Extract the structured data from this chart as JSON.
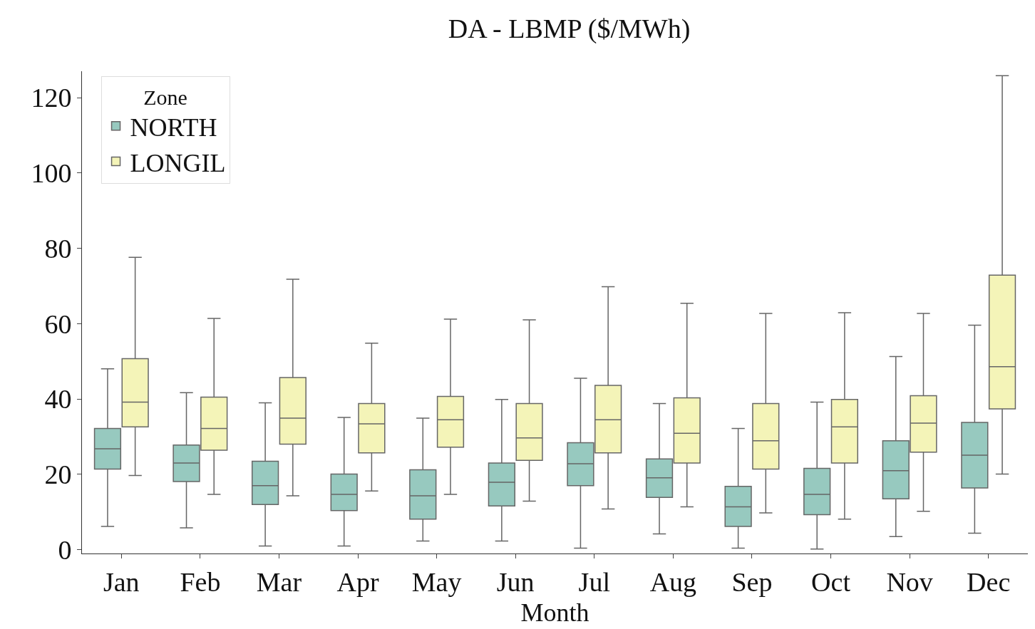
{
  "chart_data": {
    "type": "box",
    "title": "DA - LBMP ($/MWh)",
    "xlabel": "Month",
    "legend_title": "Zone",
    "categories": [
      "Jan",
      "Feb",
      "Mar",
      "Apr",
      "May",
      "Jun",
      "Jul",
      "Aug",
      "Sep",
      "Oct",
      "Nov",
      "Dec"
    ],
    "ylim": [
      -1,
      127
    ],
    "yticks": [
      0,
      20,
      40,
      60,
      80,
      100,
      120
    ],
    "grid": false,
    "legend": "top left",
    "series": [
      {
        "name": "NORTH",
        "color": "#97c9bf",
        "boxes": [
          {
            "low": 6.2,
            "q1": 21.4,
            "median": 26.8,
            "q3": 32.2,
            "high": 48.0
          },
          {
            "low": 5.8,
            "q1": 18.1,
            "median": 23.0,
            "q3": 27.8,
            "high": 41.7
          },
          {
            "low": 1.0,
            "q1": 12.0,
            "median": 17.0,
            "q3": 23.5,
            "high": 39.0
          },
          {
            "low": 1.0,
            "q1": 10.4,
            "median": 14.7,
            "q3": 20.1,
            "high": 35.1
          },
          {
            "low": 2.3,
            "q1": 8.1,
            "median": 14.3,
            "q3": 21.2,
            "high": 34.9
          },
          {
            "low": 2.3,
            "q1": 11.6,
            "median": 17.9,
            "q3": 23.0,
            "high": 39.9
          },
          {
            "low": 0.4,
            "q1": 17.0,
            "median": 22.8,
            "q3": 28.4,
            "high": 45.5
          },
          {
            "low": 4.2,
            "q1": 13.9,
            "median": 19.1,
            "q3": 24.1,
            "high": 38.8
          },
          {
            "low": 0.4,
            "q1": 6.2,
            "median": 11.4,
            "q3": 16.8,
            "high": 32.2
          },
          {
            "low": 0.2,
            "q1": 9.3,
            "median": 14.7,
            "q3": 21.6,
            "high": 39.2
          },
          {
            "low": 3.5,
            "q1": 13.5,
            "median": 21.0,
            "q3": 28.9,
            "high": 51.3
          },
          {
            "low": 4.4,
            "q1": 16.4,
            "median": 25.1,
            "q3": 33.8,
            "high": 59.6
          }
        ]
      },
      {
        "name": "LONGIL",
        "color": "#f4f4b8",
        "boxes": [
          {
            "low": 19.7,
            "q1": 32.6,
            "median": 39.2,
            "q3": 50.7,
            "high": 77.6
          },
          {
            "low": 14.7,
            "q1": 26.4,
            "median": 32.2,
            "q3": 40.5,
            "high": 61.4
          },
          {
            "low": 14.3,
            "q1": 28.0,
            "median": 34.9,
            "q3": 45.7,
            "high": 71.8
          },
          {
            "low": 15.6,
            "q1": 25.7,
            "median": 33.4,
            "q3": 38.8,
            "high": 54.8
          },
          {
            "low": 14.7,
            "q1": 27.2,
            "median": 34.5,
            "q3": 40.7,
            "high": 61.2
          },
          {
            "low": 12.9,
            "q1": 23.7,
            "median": 29.7,
            "q3": 38.8,
            "high": 61.0
          },
          {
            "low": 10.8,
            "q1": 25.7,
            "median": 34.5,
            "q3": 43.6,
            "high": 69.8
          },
          {
            "low": 11.4,
            "q1": 23.0,
            "median": 30.9,
            "q3": 40.3,
            "high": 65.4
          },
          {
            "low": 9.8,
            "q1": 21.4,
            "median": 28.9,
            "q3": 38.8,
            "high": 62.7
          },
          {
            "low": 8.1,
            "q1": 23.0,
            "median": 32.6,
            "q3": 39.9,
            "high": 62.9
          },
          {
            "low": 10.2,
            "q1": 25.9,
            "median": 33.6,
            "q3": 40.9,
            "high": 62.7
          },
          {
            "low": 20.1,
            "q1": 37.4,
            "median": 48.6,
            "q3": 72.9,
            "high": 125.8
          }
        ]
      }
    ]
  }
}
